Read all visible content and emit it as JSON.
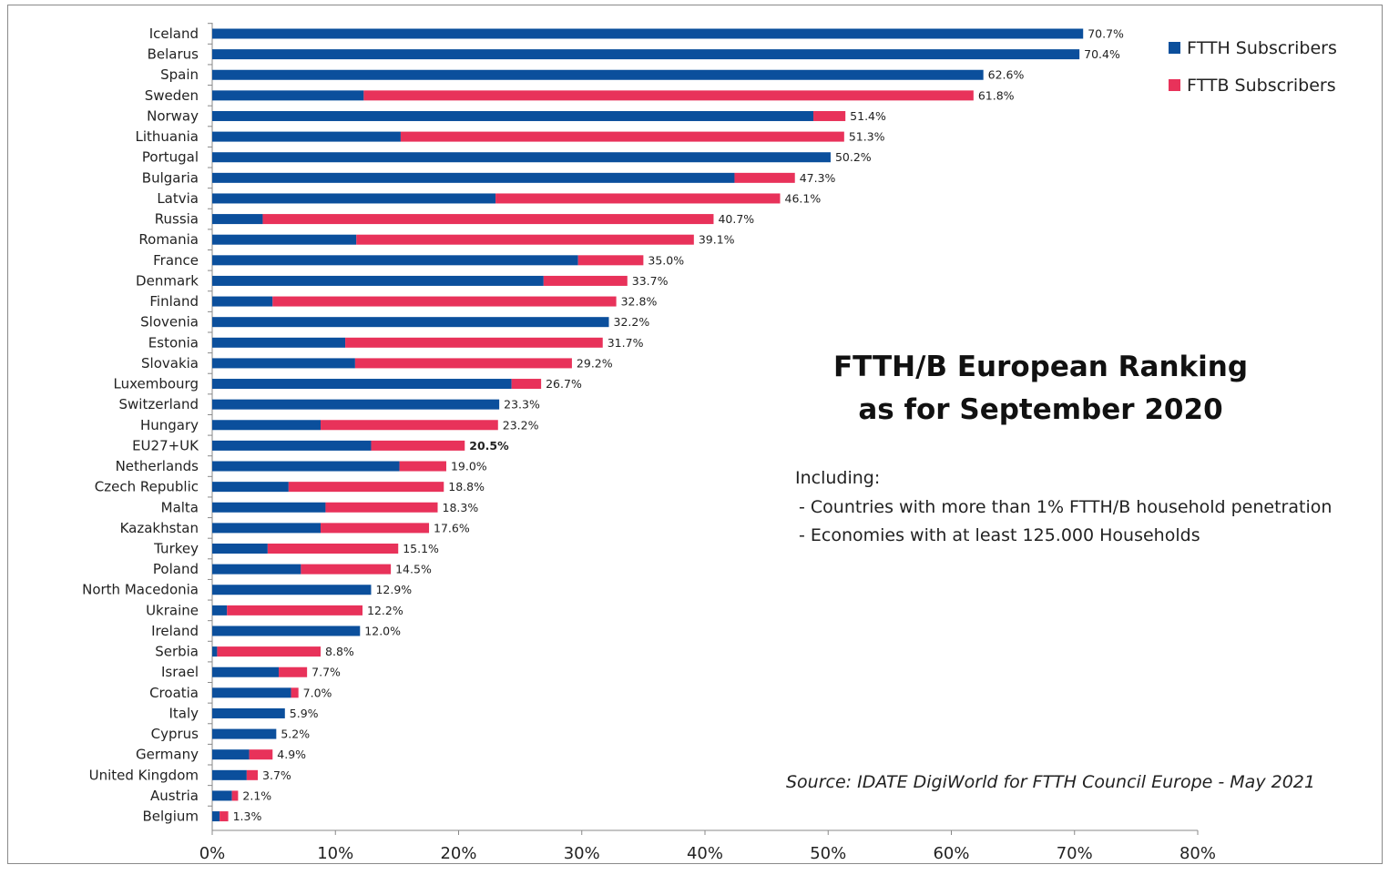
{
  "chart_data": {
    "type": "bar",
    "orientation": "horizontal",
    "stacked": true,
    "title": "FTTH/B European Ranking",
    "subtitle": "as for September 2020",
    "categories": [
      "Iceland",
      "Belarus",
      "Spain",
      "Sweden",
      "Norway",
      "Lithuania",
      "Portugal",
      "Bulgaria",
      "Latvia",
      "Russia",
      "Romania",
      "France",
      "Denmark",
      "Finland",
      "Slovenia",
      "Estonia",
      "Slovakia",
      "Luxembourg",
      "Switzerland",
      "Hungary",
      "EU27+UK",
      "Netherlands",
      "Czech Republic",
      "Malta",
      "Kazakhstan",
      "Turkey",
      "Poland",
      "North Macedonia",
      "Ukraine",
      "Ireland",
      "Serbia",
      "Israel",
      "Croatia",
      "Italy",
      "Cyprus",
      "Germany",
      "United Kingdom",
      "Austria",
      "Belgium"
    ],
    "totals": [
      70.7,
      70.4,
      62.6,
      61.8,
      51.4,
      51.3,
      50.2,
      47.3,
      46.1,
      40.7,
      39.1,
      35.0,
      33.7,
      32.8,
      32.2,
      31.7,
      29.2,
      26.7,
      23.3,
      23.2,
      20.5,
      19.0,
      18.8,
      18.3,
      17.6,
      15.1,
      14.5,
      12.9,
      12.2,
      12.0,
      8.8,
      7.7,
      7.0,
      5.9,
      5.2,
      4.9,
      3.7,
      2.1,
      1.3
    ],
    "total_labels": [
      "70.7%",
      "70.4%",
      "62.6%",
      "61.8%",
      "51.4%",
      "51.3%",
      "50.2%",
      "47.3%",
      "46.1%",
      "40.7%",
      "39.1%",
      "35.0%",
      "33.7%",
      "32.8%",
      "32.2%",
      "31.7%",
      "29.2%",
      "26.7%",
      "23.3%",
      "23.2%",
      "20.5%",
      "19.0%",
      "18.8%",
      "18.3%",
      "17.6%",
      "15.1%",
      "14.5%",
      "12.9%",
      "12.2%",
      "12.0%",
      "8.8%",
      "7.7%",
      "7.0%",
      "5.9%",
      "5.2%",
      "4.9%",
      "3.7%",
      "2.1%",
      "1.3%"
    ],
    "series": [
      {
        "name": "FTTH Subscribers",
        "color": "#0b4f9c",
        "values": [
          70.7,
          70.4,
          62.6,
          12.3,
          48.8,
          15.3,
          50.2,
          42.4,
          23.0,
          4.1,
          11.7,
          29.7,
          26.9,
          4.9,
          32.2,
          10.8,
          11.6,
          24.3,
          23.3,
          8.8,
          12.9,
          15.2,
          6.2,
          9.2,
          8.8,
          4.5,
          7.2,
          12.9,
          1.2,
          12.0,
          0.4,
          5.4,
          6.4,
          5.9,
          5.2,
          3.0,
          2.8,
          1.6,
          0.6
        ]
      },
      {
        "name": "FTTB Subscribers",
        "color": "#e8325a",
        "values": [
          0,
          0,
          0,
          49.5,
          2.6,
          36.0,
          0,
          4.9,
          23.1,
          36.6,
          27.4,
          5.3,
          6.8,
          27.9,
          0,
          20.9,
          17.6,
          2.4,
          0,
          14.4,
          7.6,
          3.8,
          12.6,
          9.1,
          8.8,
          10.6,
          7.3,
          0,
          11.0,
          0,
          8.4,
          2.3,
          0.6,
          0,
          0,
          1.9,
          0.9,
          0.5,
          0.7
        ]
      }
    ],
    "highlight_category": "EU27+UK",
    "xlim": [
      0,
      80
    ],
    "xticks": [
      "0%",
      "10%",
      "20%",
      "30%",
      "40%",
      "50%",
      "60%",
      "70%",
      "80%"
    ],
    "grid": false,
    "legend_position": "top-right"
  },
  "annotations": {
    "including_heading": "Including:",
    "including_items": [
      "- Countries with more than 1% FTTH/B household penetration",
      "- Economies with at least 125.000 Households"
    ],
    "source": "Source: IDATE DigiWorld for FTTH Council Europe - May 2021"
  }
}
